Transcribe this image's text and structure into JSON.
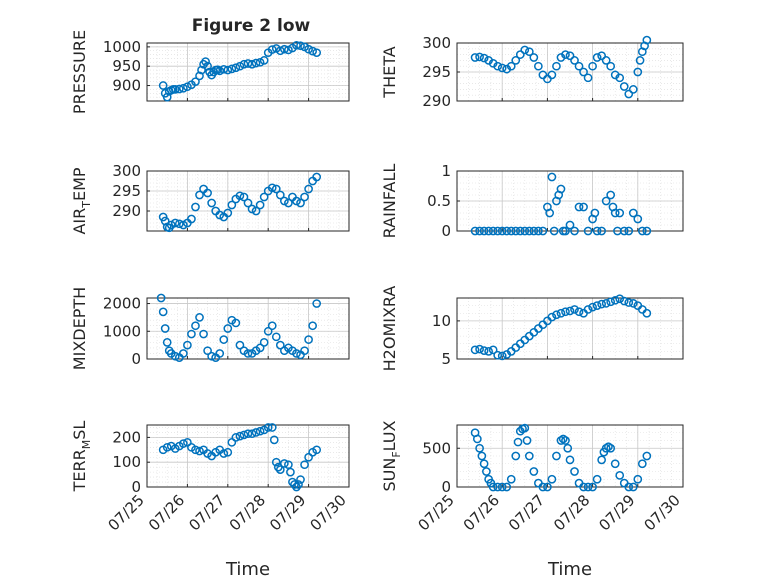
{
  "figure_title": "Figure 2 low",
  "chart_data": [
    {
      "type": "scatter",
      "title": "Figure 2 low",
      "ylabel": "PRESSURE",
      "xlim": [
        0,
        5
      ],
      "ylim": [
        860,
        1010
      ],
      "yticks": [
        900,
        950,
        1000
      ],
      "ytick_labels": [
        "900",
        "950",
        "1000"
      ],
      "xticks": [
        0,
        1,
        2,
        3,
        4,
        5
      ],
      "xtick_labels": [],
      "xlabel": "",
      "grid": true,
      "minor_grid": true,
      "marker_color": "#0072BD",
      "series": [
        {
          "x": [
            0.4,
            0.45,
            0.5,
            0.55,
            0.6,
            0.65,
            0.7,
            0.8,
            0.9,
            1.0,
            1.1,
            1.2,
            1.3,
            1.35,
            1.4,
            1.45,
            1.5,
            1.55,
            1.6,
            1.65,
            1.7,
            1.75,
            1.8,
            1.9,
            2.0,
            2.1,
            2.2,
            2.3,
            2.4,
            2.5,
            2.6,
            2.7,
            2.8,
            2.9,
            3.0,
            3.1,
            3.2,
            3.3,
            3.4,
            3.5,
            3.6,
            3.7,
            3.8,
            3.9,
            4.0,
            4.1,
            4.2
          ],
          "y": [
            900,
            880,
            870,
            885,
            888,
            890,
            890,
            891,
            893,
            897,
            902,
            910,
            925,
            940,
            955,
            962,
            950,
            935,
            927,
            935,
            940,
            941,
            938,
            942,
            940,
            943,
            946,
            950,
            955,
            957,
            955,
            958,
            960,
            965,
            985,
            993,
            996,
            990,
            994,
            992,
            997,
            1004,
            1003,
            1000,
            994,
            989,
            985
          ]
        }
      ]
    },
    {
      "type": "scatter",
      "ylabel": "THETA",
      "xlim": [
        0,
        5
      ],
      "ylim": [
        290,
        300
      ],
      "yticks": [
        290,
        295,
        300
      ],
      "ytick_labels": [
        "290",
        "295",
        "300"
      ],
      "xticks": [
        0,
        1,
        2,
        3,
        4,
        5
      ],
      "xtick_labels": [],
      "xlabel": "",
      "grid": true,
      "minor_grid": true,
      "marker_color": "#0072BD",
      "series": [
        {
          "x": [
            0.4,
            0.5,
            0.6,
            0.7,
            0.8,
            0.9,
            1.0,
            1.1,
            1.2,
            1.3,
            1.4,
            1.5,
            1.6,
            1.7,
            1.8,
            1.9,
            2.0,
            2.1,
            2.2,
            2.3,
            2.4,
            2.5,
            2.6,
            2.7,
            2.8,
            2.9,
            3.0,
            3.1,
            3.2,
            3.3,
            3.4,
            3.5,
            3.6,
            3.7,
            3.8,
            3.9,
            4.0,
            4.05,
            4.1,
            4.15,
            4.2
          ],
          "y": [
            297.5,
            297.6,
            297.4,
            297.0,
            296.5,
            296.0,
            295.7,
            295.5,
            296.0,
            297.0,
            298.0,
            298.8,
            298.5,
            297.5,
            296.0,
            294.5,
            293.8,
            294.5,
            296.0,
            297.5,
            298.0,
            297.8,
            297.0,
            296.0,
            295.0,
            294.0,
            296.0,
            297.5,
            297.8,
            297.0,
            296.0,
            294.5,
            294.0,
            292.5,
            291.2,
            292.0,
            295.0,
            297.0,
            298.5,
            299.5,
            300.5
          ]
        }
      ]
    },
    {
      "type": "scatter",
      "ylabel": "AIR_TEMP",
      "ylabel_display": [
        "AIR",
        "T",
        "EMP"
      ],
      "xlim": [
        0,
        5
      ],
      "ylim": [
        285,
        300
      ],
      "yticks": [
        290,
        295,
        300
      ],
      "ytick_labels": [
        "290",
        "295",
        "300"
      ],
      "xticks": [
        0,
        1,
        2,
        3,
        4,
        5
      ],
      "xtick_labels": [],
      "xlabel": "",
      "grid": true,
      "minor_grid": true,
      "marker_color": "#0072BD",
      "series": [
        {
          "x": [
            0.4,
            0.45,
            0.5,
            0.55,
            0.6,
            0.7,
            0.8,
            0.9,
            1.0,
            1.1,
            1.2,
            1.3,
            1.4,
            1.5,
            1.6,
            1.7,
            1.8,
            1.9,
            2.0,
            2.1,
            2.2,
            2.3,
            2.4,
            2.5,
            2.6,
            2.7,
            2.8,
            2.9,
            3.0,
            3.1,
            3.2,
            3.3,
            3.4,
            3.5,
            3.6,
            3.7,
            3.8,
            3.9,
            4.0,
            4.1,
            4.2
          ],
          "y": [
            288.5,
            287.5,
            286.0,
            285.8,
            286.5,
            287.0,
            286.8,
            286.5,
            287.0,
            288.0,
            291.0,
            294.0,
            295.5,
            294.5,
            292.0,
            290.0,
            289.0,
            288.5,
            289.5,
            291.5,
            293.0,
            293.8,
            293.5,
            292.0,
            290.5,
            290.0,
            291.5,
            293.5,
            295.0,
            295.8,
            295.5,
            294.0,
            292.5,
            292.0,
            293.5,
            292.5,
            292.0,
            293.5,
            295.5,
            297.5,
            298.5
          ]
        }
      ]
    },
    {
      "type": "scatter",
      "ylabel": "RAINFALL",
      "xlim": [
        0,
        5
      ],
      "ylim": [
        0,
        1
      ],
      "yticks": [
        0,
        0.5,
        1
      ],
      "ytick_labels": [
        "0",
        "0.5",
        "1"
      ],
      "xticks": [
        0,
        1,
        2,
        3,
        4,
        5
      ],
      "xtick_labels": [],
      "xlabel": "",
      "grid": true,
      "minor_grid": true,
      "marker_color": "#0072BD",
      "series": [
        {
          "x": [
            0.4,
            0.5,
            0.6,
            0.7,
            0.8,
            0.9,
            1.0,
            1.1,
            1.2,
            1.3,
            1.4,
            1.5,
            1.6,
            1.7,
            1.8,
            1.9,
            2.0,
            2.05,
            2.1,
            2.15,
            2.2,
            2.25,
            2.3,
            2.35,
            2.4,
            2.5,
            2.6,
            2.7,
            2.8,
            2.9,
            3.0,
            3.05,
            3.1,
            3.2,
            3.3,
            3.4,
            3.45,
            3.5,
            3.55,
            3.6,
            3.7,
            3.8,
            3.9,
            4.0,
            4.1,
            4.2
          ],
          "y": [
            0,
            0,
            0,
            0,
            0,
            0,
            0,
            0,
            0,
            0,
            0,
            0,
            0,
            0,
            0,
            0,
            0.4,
            0.3,
            0.9,
            0,
            0.5,
            0.6,
            0.7,
            0,
            0,
            0.1,
            0,
            0.4,
            0.4,
            0,
            0.2,
            0.3,
            0,
            0,
            0.5,
            0.6,
            0.4,
            0.3,
            0,
            0.3,
            0,
            0,
            0.3,
            0.2,
            0,
            0
          ]
        }
      ]
    },
    {
      "type": "scatter",
      "ylabel": "MIXDEPTH",
      "xlim": [
        0,
        5
      ],
      "ylim": [
        0,
        2200
      ],
      "yticks": [
        0,
        1000,
        2000
      ],
      "ytick_labels": [
        "0",
        "1000",
        "2000"
      ],
      "xticks": [
        0,
        1,
        2,
        3,
        4,
        5
      ],
      "xtick_labels": [],
      "xlabel": "",
      "grid": true,
      "minor_grid": true,
      "marker_color": "#0072BD",
      "series": [
        {
          "x": [
            0.35,
            0.4,
            0.45,
            0.5,
            0.55,
            0.6,
            0.7,
            0.8,
            0.9,
            1.0,
            1.1,
            1.2,
            1.3,
            1.4,
            1.5,
            1.6,
            1.7,
            1.8,
            1.9,
            2.0,
            2.1,
            2.2,
            2.3,
            2.4,
            2.5,
            2.6,
            2.7,
            2.8,
            2.9,
            3.0,
            3.1,
            3.2,
            3.3,
            3.4,
            3.5,
            3.6,
            3.7,
            3.8,
            3.9,
            4.0,
            4.1,
            4.2
          ],
          "y": [
            2200,
            1700,
            1100,
            600,
            300,
            200,
            100,
            50,
            200,
            500,
            900,
            1200,
            1500,
            900,
            300,
            100,
            50,
            200,
            700,
            1100,
            1400,
            1300,
            500,
            300,
            200,
            200,
            300,
            400,
            600,
            1000,
            1200,
            800,
            500,
            300,
            400,
            300,
            200,
            150,
            300,
            700,
            1200,
            2000
          ]
        }
      ]
    },
    {
      "type": "scatter",
      "ylabel": "H2OMIXRA",
      "xlim": [
        0,
        5
      ],
      "ylim": [
        5,
        13
      ],
      "yticks": [
        5,
        10
      ],
      "ytick_labels": [
        "5",
        "10"
      ],
      "xticks": [
        0,
        1,
        2,
        3,
        4,
        5
      ],
      "xtick_labels": [],
      "xlabel": "",
      "grid": true,
      "minor_grid": true,
      "marker_color": "#0072BD",
      "series": [
        {
          "x": [
            0.4,
            0.5,
            0.6,
            0.7,
            0.8,
            0.9,
            1.0,
            1.1,
            1.2,
            1.3,
            1.4,
            1.5,
            1.6,
            1.7,
            1.8,
            1.9,
            2.0,
            2.1,
            2.2,
            2.3,
            2.4,
            2.5,
            2.6,
            2.7,
            2.8,
            2.9,
            3.0,
            3.1,
            3.2,
            3.3,
            3.4,
            3.5,
            3.6,
            3.7,
            3.8,
            3.9,
            4.0,
            4.1,
            4.2
          ],
          "y": [
            6.2,
            6.3,
            6.1,
            6.0,
            6.2,
            5.5,
            5.4,
            5.6,
            6.0,
            6.5,
            7.0,
            7.5,
            8.0,
            8.5,
            9.0,
            9.5,
            10.0,
            10.5,
            10.8,
            11.0,
            11.2,
            11.3,
            11.5,
            11.2,
            11.0,
            11.5,
            11.8,
            12.0,
            12.2,
            12.3,
            12.5,
            12.7,
            12.9,
            12.6,
            12.4,
            12.3,
            12.0,
            11.5,
            11.0
          ]
        }
      ]
    },
    {
      "type": "scatter",
      "ylabel": "TERR_MSL",
      "ylabel_display": [
        "TERR",
        "M",
        "SL"
      ],
      "xlim": [
        0,
        5
      ],
      "ylim": [
        0,
        250
      ],
      "yticks": [
        0,
        100,
        200
      ],
      "ytick_labels": [
        "0",
        "100",
        "200"
      ],
      "xticks": [
        0,
        1,
        2,
        3,
        4,
        5
      ],
      "xtick_labels": [
        "07/25",
        "07/26",
        "07/27",
        "07/28",
        "07/29",
        "07/30"
      ],
      "xlabel": "Time",
      "grid": true,
      "minor_grid": true,
      "marker_color": "#0072BD",
      "series": [
        {
          "x": [
            0.4,
            0.5,
            0.6,
            0.7,
            0.8,
            0.9,
            1.0,
            1.1,
            1.2,
            1.3,
            1.4,
            1.5,
            1.6,
            1.7,
            1.8,
            1.9,
            2.0,
            2.1,
            2.2,
            2.3,
            2.4,
            2.5,
            2.6,
            2.7,
            2.8,
            2.9,
            3.0,
            3.1,
            3.15,
            3.2,
            3.25,
            3.3,
            3.4,
            3.5,
            3.55,
            3.6,
            3.65,
            3.7,
            3.75,
            3.8,
            3.9,
            4.0,
            4.1,
            4.2
          ],
          "y": [
            150,
            160,
            165,
            155,
            165,
            175,
            180,
            160,
            150,
            145,
            150,
            135,
            125,
            140,
            150,
            135,
            140,
            180,
            200,
            205,
            210,
            215,
            215,
            220,
            225,
            230,
            240,
            240,
            190,
            100,
            80,
            70,
            95,
            90,
            60,
            20,
            10,
            0,
            10,
            30,
            90,
            120,
            140,
            150
          ]
        }
      ]
    },
    {
      "type": "scatter",
      "ylabel": "SUN_FLUX",
      "ylabel_display": [
        "SUN",
        "F",
        "LUX"
      ],
      "xlim": [
        0,
        5
      ],
      "ylim": [
        0,
        800
      ],
      "yticks": [
        0,
        500
      ],
      "ytick_labels": [
        "0",
        "500"
      ],
      "xticks": [
        0,
        1,
        2,
        3,
        4,
        5
      ],
      "xtick_labels": [
        "07/25",
        "07/26",
        "07/27",
        "07/28",
        "07/29",
        "07/30"
      ],
      "xlabel": "Time",
      "grid": true,
      "minor_grid": true,
      "marker_color": "#0072BD",
      "series": [
        {
          "x": [
            0.4,
            0.45,
            0.5,
            0.55,
            0.6,
            0.65,
            0.7,
            0.75,
            0.8,
            0.9,
            1.0,
            1.1,
            1.2,
            1.3,
            1.35,
            1.4,
            1.45,
            1.5,
            1.55,
            1.6,
            1.7,
            1.8,
            1.9,
            2.0,
            2.1,
            2.2,
            2.3,
            2.35,
            2.4,
            2.45,
            2.5,
            2.6,
            2.7,
            2.8,
            2.9,
            3.0,
            3.1,
            3.2,
            3.25,
            3.3,
            3.35,
            3.4,
            3.5,
            3.6,
            3.7,
            3.8,
            3.9,
            4.0,
            4.1,
            4.2
          ],
          "y": [
            700,
            620,
            500,
            400,
            300,
            200,
            100,
            50,
            0,
            0,
            0,
            0,
            100,
            400,
            580,
            720,
            750,
            760,
            600,
            400,
            200,
            50,
            0,
            0,
            100,
            400,
            600,
            620,
            600,
            500,
            350,
            200,
            50,
            0,
            0,
            0,
            100,
            350,
            450,
            500,
            520,
            500,
            300,
            150,
            50,
            0,
            0,
            100,
            300,
            400
          ]
        }
      ]
    }
  ]
}
